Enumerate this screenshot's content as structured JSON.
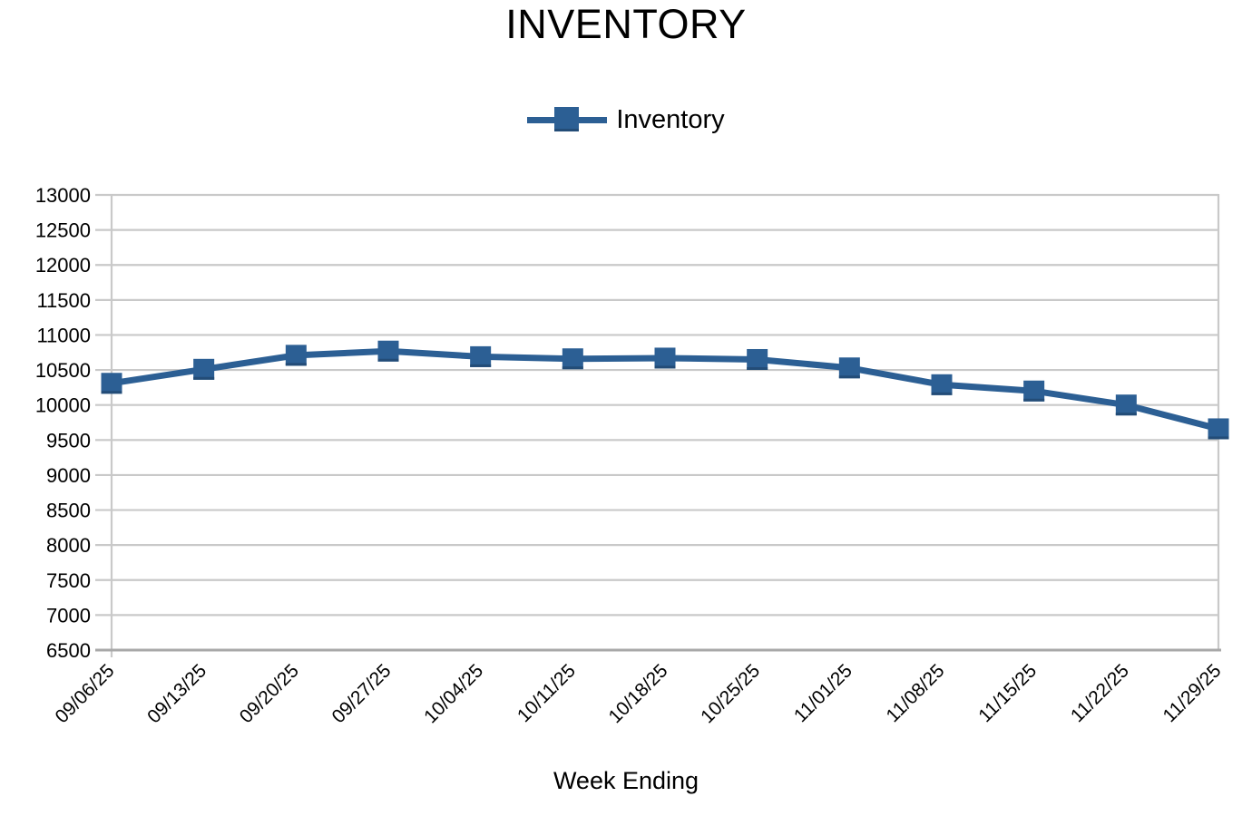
{
  "chart_data": {
    "type": "line",
    "title": "INVENTORY",
    "xlabel": "Week Ending",
    "ylabel": "",
    "legend": {
      "label": "Inventory",
      "position": "top-center",
      "marker": "square"
    },
    "categories": [
      "09/06/25",
      "09/13/25",
      "09/20/25",
      "09/27/25",
      "10/04/25",
      "10/11/25",
      "10/18/25",
      "10/25/25",
      "11/01/25",
      "11/08/25",
      "11/15/25",
      "11/22/25",
      "11/29/25"
    ],
    "series": [
      {
        "name": "Inventory",
        "color": "#2C5F94",
        "marker": "square",
        "values": [
          10310,
          10510,
          10710,
          10770,
          10690,
          10660,
          10670,
          10650,
          10530,
          10290,
          10200,
          10000,
          9660
        ]
      }
    ],
    "ylim": [
      6500,
      13000
    ],
    "yticks": [
      13000,
      12500,
      12000,
      11500,
      11000,
      10500,
      10000,
      9500,
      9000,
      8500,
      8000,
      7500,
      7000,
      6500
    ],
    "grid": "horizontal-only",
    "colors": {
      "series": "#2C5F94",
      "marker_edge": "#234C77",
      "gridline": "#C9C9C9",
      "axis": "#A8A8A8",
      "text": "#000000",
      "background": "#FFFFFF"
    }
  }
}
